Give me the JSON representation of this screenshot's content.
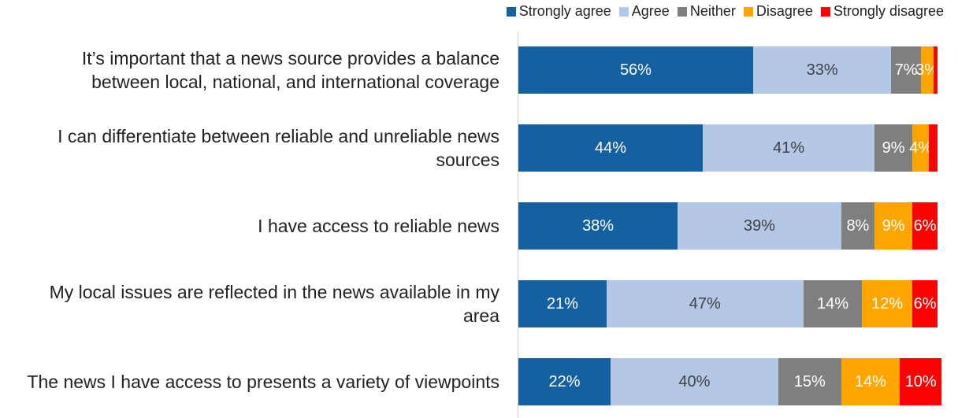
{
  "chart_data": {
    "type": "bar",
    "orientation": "horizontal-stacked",
    "categories": [
      "It’s important that a news source provides a balance between local, national, and international coverage",
      "I can differentiate between reliable and unreliable news sources",
      "I have access to reliable news",
      "My local issues are reflected in the news available in my area",
      "The news I have access to presents a variety of viewpoints"
    ],
    "series": [
      {
        "name": "Strongly agree",
        "color": "#1560A0",
        "values": [
          56,
          44,
          38,
          21,
          22
        ],
        "labels": [
          "56%",
          "44%",
          "38%",
          "21%",
          "22%"
        ]
      },
      {
        "name": "Agree",
        "color": "#B4C7E7",
        "values": [
          33,
          41,
          39,
          47,
          40
        ],
        "labels": [
          "33%",
          "41%",
          "39%",
          "47%",
          "40%"
        ]
      },
      {
        "name": "Neither",
        "color": "#7F7F7F",
        "values": [
          7,
          9,
          8,
          14,
          15
        ],
        "labels": [
          "7%",
          "9%",
          "8%",
          "14%",
          "15%"
        ]
      },
      {
        "name": "Disagree",
        "color": "#FFA500",
        "values": [
          3,
          4,
          9,
          12,
          14
        ],
        "labels": [
          "3%",
          "4%",
          "9%",
          "12%",
          "14%"
        ]
      },
      {
        "name": "Strongly disagree",
        "color": "#FF0000",
        "values": [
          1,
          2,
          6,
          6,
          10
        ],
        "labels": [
          "",
          "",
          "6%",
          "6%",
          "10%"
        ]
      }
    ],
    "xlim": [
      0,
      100
    ],
    "legend": "top-right",
    "grid": false
  }
}
